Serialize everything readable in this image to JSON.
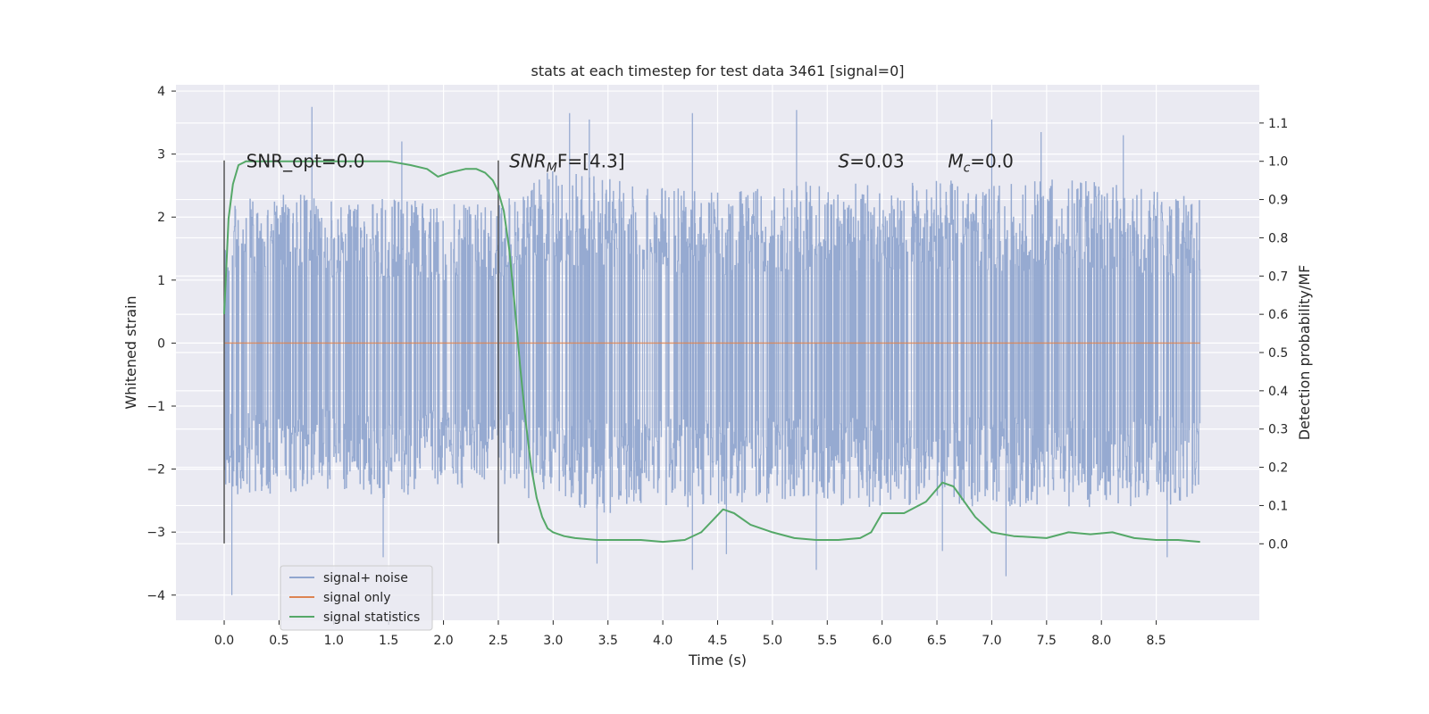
{
  "chart_data": {
    "type": "line",
    "title": "stats at each timestep for test data 3461 [signal=0]",
    "xlabel": "Time (s)",
    "ylabel": "Whitened strain",
    "y2label": "Detection probability/MF",
    "xlim": [
      -0.44,
      9.44
    ],
    "ylim": [
      -4.4,
      4.1
    ],
    "y2lim": [
      -0.2,
      1.2
    ],
    "xticks": [
      "0.0",
      "0.5",
      "1.0",
      "1.5",
      "2.0",
      "2.5",
      "3.0",
      "3.5",
      "4.0",
      "4.5",
      "5.0",
      "5.5",
      "6.0",
      "6.5",
      "7.0",
      "7.5",
      "8.0",
      "8.5"
    ],
    "yticks": [
      "4",
      "3",
      "2",
      "1",
      "0",
      "−1",
      "−2",
      "−3",
      "−4"
    ],
    "y2ticks": [
      "1.1",
      "1.0",
      "0.9",
      "0.8",
      "0.7",
      "0.6",
      "0.5",
      "0.4",
      "0.3",
      "0.2",
      "0.1",
      "0.0"
    ],
    "grid": true,
    "legend_position": "lower-left",
    "series": [
      {
        "name": "signal+ noise",
        "axis": "left",
        "color": "#91a6cf",
        "description_range": [
          -4.0,
          3.75
        ],
        "x_range": [
          0.0,
          8.9
        ],
        "envelope_upper": [
          [
            0.0,
            2.2
          ],
          [
            0.5,
            2.4
          ],
          [
            1.0,
            2.3
          ],
          [
            1.5,
            2.3
          ],
          [
            2.0,
            2.2
          ],
          [
            2.5,
            2.2
          ],
          [
            3.0,
            2.8
          ],
          [
            3.5,
            2.6
          ],
          [
            4.0,
            2.5
          ],
          [
            4.5,
            2.4
          ],
          [
            5.0,
            2.5
          ],
          [
            5.5,
            2.6
          ],
          [
            6.0,
            2.5
          ],
          [
            6.5,
            2.6
          ],
          [
            7.0,
            2.5
          ],
          [
            7.5,
            2.6
          ],
          [
            8.0,
            2.6
          ],
          [
            8.5,
            2.4
          ],
          [
            8.9,
            2.3
          ]
        ],
        "envelope_lower": [
          [
            0.0,
            -2.5
          ],
          [
            0.5,
            -2.4
          ],
          [
            1.0,
            -2.3
          ],
          [
            1.5,
            -2.5
          ],
          [
            2.0,
            -2.3
          ],
          [
            2.5,
            -2.3
          ],
          [
            3.0,
            -2.6
          ],
          [
            3.5,
            -2.7
          ],
          [
            4.0,
            -2.6
          ],
          [
            4.5,
            -2.6
          ],
          [
            5.0,
            -2.6
          ],
          [
            5.5,
            -2.6
          ],
          [
            6.0,
            -2.6
          ],
          [
            6.5,
            -2.6
          ],
          [
            7.0,
            -2.6
          ],
          [
            7.5,
            -2.6
          ],
          [
            8.0,
            -2.6
          ],
          [
            8.5,
            -2.6
          ],
          [
            8.9,
            -2.5
          ]
        ],
        "peaks": [
          [
            0.07,
            -4.0
          ],
          [
            0.8,
            3.75
          ],
          [
            1.62,
            3.2
          ],
          [
            1.45,
            -3.4
          ],
          [
            3.15,
            3.65
          ],
          [
            3.33,
            3.55
          ],
          [
            3.4,
            -3.5
          ],
          [
            4.27,
            3.65
          ],
          [
            4.27,
            -3.6
          ],
          [
            4.58,
            -3.35
          ],
          [
            5.22,
            3.7
          ],
          [
            5.4,
            -3.6
          ],
          [
            6.55,
            -3.3
          ],
          [
            7.13,
            -3.7
          ],
          [
            7.0,
            3.55
          ],
          [
            7.45,
            3.35
          ],
          [
            8.2,
            3.3
          ],
          [
            8.6,
            -3.4
          ]
        ]
      },
      {
        "name": "signal only",
        "axis": "left",
        "color": "#dd8452",
        "x": [
          0.0,
          8.9
        ],
        "y": [
          0.0,
          0.0
        ]
      },
      {
        "name": "signal statistics",
        "axis": "right",
        "color": "#55a868",
        "x": [
          0.0,
          0.04,
          0.08,
          0.13,
          0.2,
          0.3,
          0.5,
          1.0,
          1.5,
          1.7,
          1.85,
          1.95,
          2.05,
          2.2,
          2.3,
          2.38,
          2.45,
          2.5,
          2.55,
          2.6,
          2.65,
          2.7,
          2.75,
          2.8,
          2.85,
          2.9,
          2.95,
          3.0,
          3.1,
          3.2,
          3.4,
          3.6,
          3.8,
          4.0,
          4.2,
          4.35,
          4.45,
          4.55,
          4.65,
          4.8,
          5.0,
          5.2,
          5.4,
          5.6,
          5.8,
          5.9,
          6.0,
          6.2,
          6.4,
          6.55,
          6.65,
          6.75,
          6.85,
          7.0,
          7.2,
          7.5,
          7.7,
          7.9,
          8.1,
          8.3,
          8.5,
          8.7,
          8.9
        ],
        "y": [
          0.6,
          0.85,
          0.94,
          0.99,
          1.0,
          1.0,
          1.0,
          1.0,
          1.0,
          0.99,
          0.98,
          0.96,
          0.97,
          0.98,
          0.98,
          0.97,
          0.95,
          0.92,
          0.87,
          0.77,
          0.62,
          0.46,
          0.32,
          0.2,
          0.12,
          0.07,
          0.04,
          0.03,
          0.02,
          0.015,
          0.01,
          0.01,
          0.01,
          0.005,
          0.01,
          0.03,
          0.06,
          0.09,
          0.08,
          0.05,
          0.03,
          0.015,
          0.01,
          0.01,
          0.015,
          0.03,
          0.08,
          0.08,
          0.11,
          0.16,
          0.15,
          0.11,
          0.07,
          0.03,
          0.02,
          0.015,
          0.03,
          0.025,
          0.03,
          0.015,
          0.01,
          0.01,
          0.005
        ]
      }
    ],
    "vertical_lines": [
      {
        "x": 0.0,
        "y_from": -3.18,
        "y_to": 2.9,
        "color": "#555555"
      },
      {
        "x": 2.5,
        "y_from": -3.18,
        "y_to": 2.9,
        "color": "#555555"
      }
    ],
    "annotations": [
      {
        "x": 0.2,
        "y": 2.9,
        "text": "SNR_opt=0.0"
      },
      {
        "x": 2.6,
        "y": 2.9,
        "main": "SNR",
        "sub": "M",
        "tail": "F=[4.3]"
      },
      {
        "x": 5.6,
        "y": 2.9,
        "main": "S",
        "sub": "",
        "tail": "=0.03"
      },
      {
        "x": 6.6,
        "y": 2.9,
        "main": "M",
        "sub": "c",
        "tail": "=0.0"
      }
    ]
  }
}
